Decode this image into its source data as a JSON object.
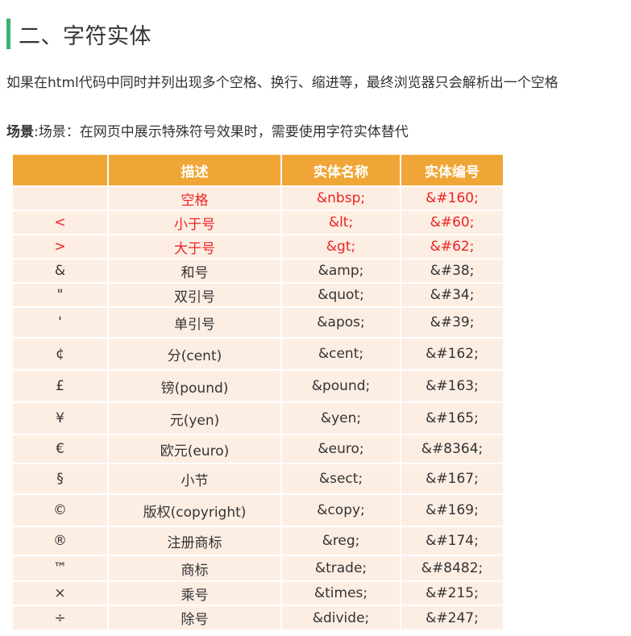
{
  "heading": {
    "title": "二、字符实体",
    "accent_color": "#3cb371"
  },
  "intro": "如果在html代码中同时并列出现多个空格、换行、缩进等，最终浏览器只会解析出一个空格",
  "scene": {
    "bold_label": "场景",
    "text": ":场景：在网页中展示特殊符号效果时，需要使用字符实体替代"
  },
  "table": {
    "header_color": "#f0a636",
    "row_color": "#fdeee4",
    "headers": [
      "",
      "描述",
      "实体名称",
      "实体编号"
    ],
    "rows": [
      {
        "symbol": "",
        "desc": "空格",
        "name": "&nbsp;",
        "code": "&#160;",
        "highlight": true,
        "h": 30
      },
      {
        "symbol": "<",
        "desc": "小于号",
        "name": "&lt;",
        "code": "&#60;",
        "highlight": true,
        "h": 30
      },
      {
        "symbol": ">",
        "desc": "大于号",
        "name": "&gt;",
        "code": "&#62;",
        "highlight": true,
        "h": 30
      },
      {
        "symbol": "&",
        "desc": "和号",
        "name": "&amp;",
        "code": "&#38;",
        "highlight": false,
        "h": 30
      },
      {
        "symbol": "\"",
        "desc": "双引号",
        "name": "&quot;",
        "code": "&#34;",
        "highlight": false,
        "h": 30
      },
      {
        "symbol": "'",
        "desc": "单引号",
        "name": "&apos;",
        "code": "&#39;",
        "highlight": false,
        "h": 38
      },
      {
        "symbol": "¢",
        "desc": "分(cent)",
        "name": "&cent;",
        "code": "&#162;",
        "highlight": false,
        "h": 40
      },
      {
        "symbol": "£",
        "desc": "镑(pound)",
        "name": "&pound;",
        "code": "&#163;",
        "highlight": false,
        "h": 40
      },
      {
        "symbol": "¥",
        "desc": "元(yen)",
        "name": "&yen;",
        "code": "&#165;",
        "highlight": false,
        "h": 40
      },
      {
        "symbol": "€",
        "desc": "欧元(euro)",
        "name": "&euro;",
        "code": "&#8364;",
        "highlight": false,
        "h": 36
      },
      {
        "symbol": "§",
        "desc": "小节",
        "name": "&sect;",
        "code": "&#167;",
        "highlight": false,
        "h": 38
      },
      {
        "symbol": "©",
        "desc": "版权(copyright)",
        "name": "&copy;",
        "code": "&#169;",
        "highlight": false,
        "h": 40
      },
      {
        "symbol": "®",
        "desc": "注册商标",
        "name": "&reg;",
        "code": "&#174;",
        "highlight": false,
        "h": 36
      },
      {
        "symbol": "™",
        "desc": "商标",
        "name": "&trade;",
        "code": "&#8482;",
        "highlight": false,
        "h": 32
      },
      {
        "symbol": "×",
        "desc": "乘号",
        "name": "&times;",
        "code": "&#215;",
        "highlight": false,
        "h": 30
      },
      {
        "symbol": "÷",
        "desc": "除号",
        "name": "&divide;",
        "code": "&#247;",
        "highlight": false,
        "h": 30
      }
    ]
  }
}
